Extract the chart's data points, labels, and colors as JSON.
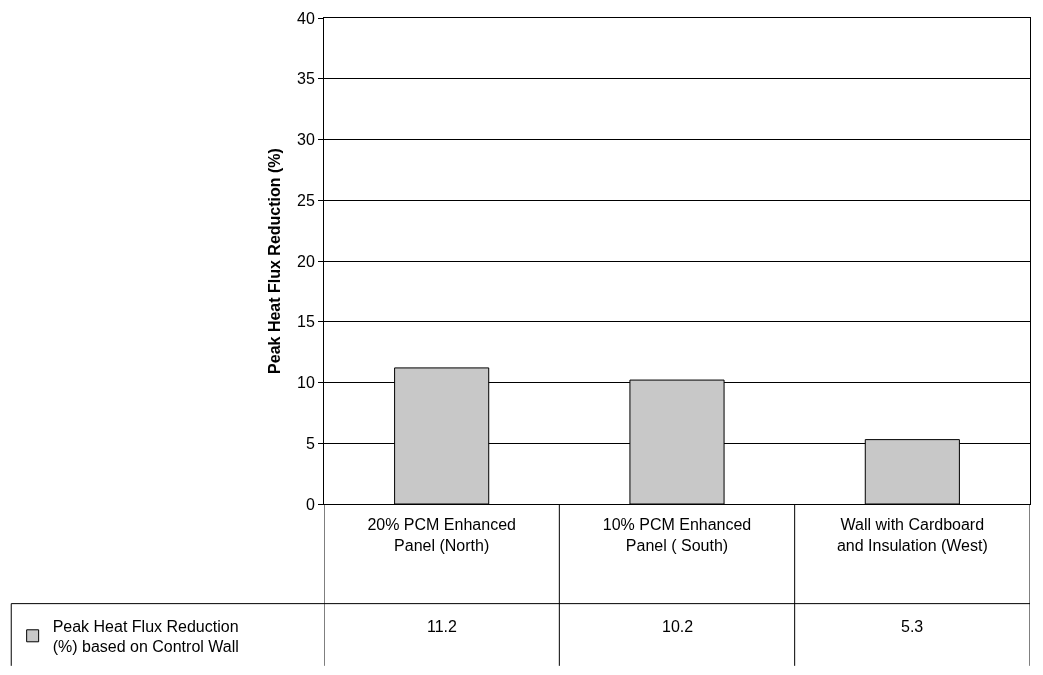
{
  "chart_data": {
    "type": "bar",
    "ylabel": "Peak Heat Flux Reduction (%)",
    "categories": [
      "20% PCM Enhanced Panel (North)",
      "10% PCM Enhanced Panel ( South)",
      "Wall with Cardboard and Insulation (West)"
    ],
    "series": [
      {
        "name": "Peak Heat Flux Reduction (%) based on Control Wall",
        "color": "#c8c8c8",
        "values": [
          11.2,
          10.2,
          5.3
        ]
      }
    ],
    "ylim": [
      0,
      40
    ],
    "yticks": [
      0,
      5,
      10,
      15,
      20,
      25,
      30,
      35,
      40
    ],
    "grid": "y",
    "legend": "bottom left",
    "data_labels": true
  }
}
